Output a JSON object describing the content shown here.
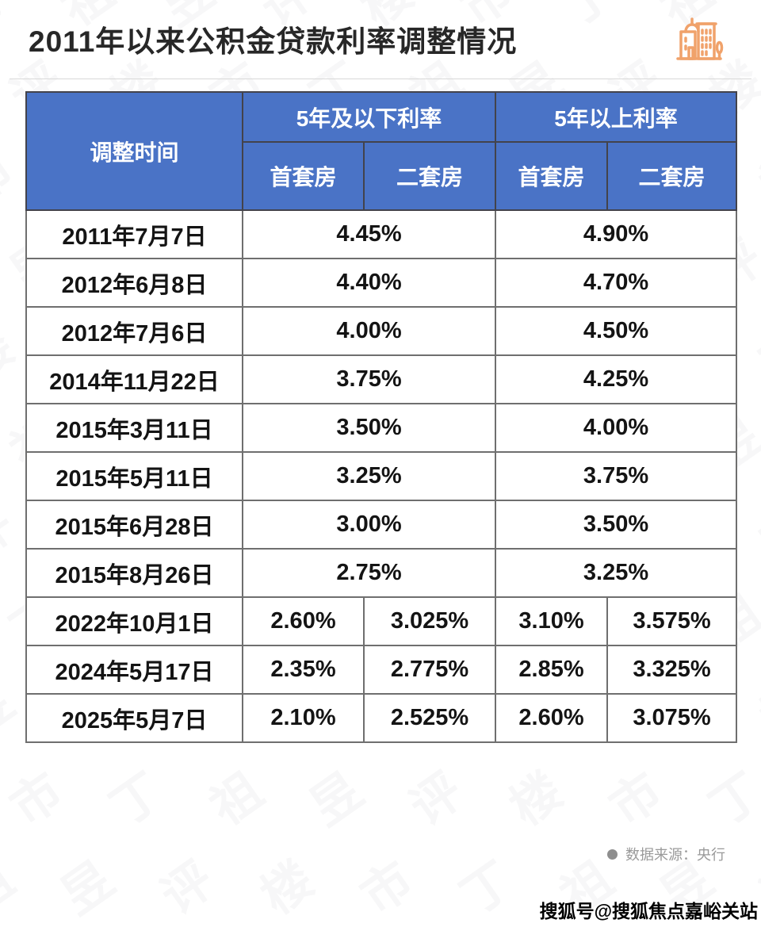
{
  "header": {
    "title": "2011年以来公积金贷款利率调整情况"
  },
  "table": {
    "header": {
      "time": "调整时间",
      "group_under5": "5年及以下利率",
      "group_over5": "5年以上利率",
      "sub_first": "首套房",
      "sub_second": "二套房"
    },
    "rows": [
      {
        "date": "2011年7月7日",
        "merged": true,
        "cells": [
          "4.45%",
          "4.90%"
        ]
      },
      {
        "date": "2012年6月8日",
        "merged": true,
        "cells": [
          "4.40%",
          "4.70%"
        ]
      },
      {
        "date": "2012年7月6日",
        "merged": true,
        "cells": [
          "4.00%",
          "4.50%"
        ]
      },
      {
        "date": "2014年11月22日",
        "merged": true,
        "cells": [
          "3.75%",
          "4.25%"
        ]
      },
      {
        "date": "2015年3月11日",
        "merged": true,
        "cells": [
          "3.50%",
          "4.00%"
        ]
      },
      {
        "date": "2015年5月11日",
        "merged": true,
        "cells": [
          "3.25%",
          "3.75%"
        ]
      },
      {
        "date": "2015年6月28日",
        "merged": true,
        "cells": [
          "3.00%",
          "3.50%"
        ]
      },
      {
        "date": "2015年8月26日",
        "merged": true,
        "cells": [
          "2.75%",
          "3.25%"
        ]
      },
      {
        "date": "2022年10月1日",
        "merged": false,
        "cells": [
          "2.60%",
          "3.025%",
          "3.10%",
          "3.575%"
        ]
      },
      {
        "date": "2024年5月17日",
        "merged": false,
        "cells": [
          "2.35%",
          "2.775%",
          "2.85%",
          "3.325%"
        ]
      },
      {
        "date": "2025年5月7日",
        "merged": false,
        "cells": [
          "2.10%",
          "2.525%",
          "2.60%",
          "3.075%"
        ]
      }
    ]
  },
  "footer": {
    "source_dot": "●",
    "source": "数据来源：央行",
    "sohu": "搜狐号@搜狐焦点嘉峪关站"
  },
  "watermark": {
    "glyphs": "丁祖昱评楼市"
  },
  "colors": {
    "header_blue": "#4a73c6",
    "border_dark": "#43434b",
    "border_gray": "#6f6f6f",
    "icon_orange": "#f0a26b",
    "source_gray": "#9a9a9a",
    "divider": "#d9d9d9",
    "text": "#141414"
  },
  "chart_data": {
    "type": "table",
    "title": "2011年以来公积金贷款利率调整情况",
    "columns": [
      "调整时间",
      "5年及以下利率 首套房",
      "5年及以下利率 二套房",
      "5年以上利率 首套房",
      "5年以上利率 二套房"
    ],
    "rows": [
      [
        "2011年7月7日",
        "4.45%",
        "4.45%",
        "4.90%",
        "4.90%"
      ],
      [
        "2012年6月8日",
        "4.40%",
        "4.40%",
        "4.70%",
        "4.70%"
      ],
      [
        "2012年7月6日",
        "4.00%",
        "4.00%",
        "4.50%",
        "4.50%"
      ],
      [
        "2014年11月22日",
        "3.75%",
        "3.75%",
        "4.25%",
        "4.25%"
      ],
      [
        "2015年3月11日",
        "3.50%",
        "3.50%",
        "4.00%",
        "4.00%"
      ],
      [
        "2015年5月11日",
        "3.25%",
        "3.25%",
        "3.75%",
        "3.75%"
      ],
      [
        "2015年6月28日",
        "3.00%",
        "3.00%",
        "3.50%",
        "3.50%"
      ],
      [
        "2015年8月26日",
        "2.75%",
        "2.75%",
        "3.25%",
        "3.25%"
      ],
      [
        "2022年10月1日",
        "2.60%",
        "3.025%",
        "3.10%",
        "3.575%"
      ],
      [
        "2024年5月17日",
        "2.35%",
        "2.775%",
        "2.85%",
        "3.325%"
      ],
      [
        "2025年5月7日",
        "2.10%",
        "2.525%",
        "2.60%",
        "3.075%"
      ]
    ],
    "notes": "Rows 2011-2015 show merged cells: one rate spans 首套房/二套房 within each term group.",
    "source": "央行"
  }
}
